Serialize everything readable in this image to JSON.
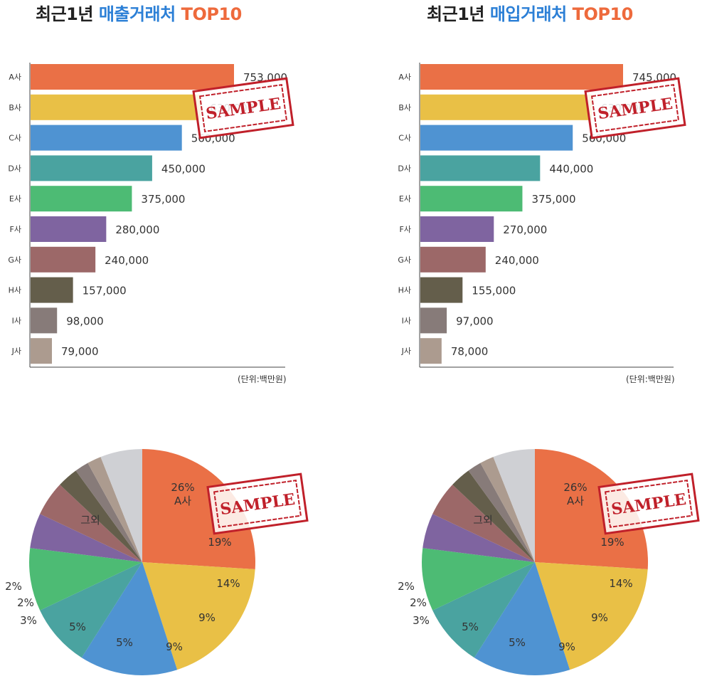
{
  "titles": [
    {
      "main": "최근1년",
      "accent": "매출거래처",
      "top": "TOP10"
    },
    {
      "main": "최근1년",
      "accent": "매입거래처",
      "top": "TOP10"
    }
  ],
  "unit_label": "(단위:백만원)",
  "stamp_text": "SAMPLE",
  "colors": [
    "#ea7046",
    "#e9c046",
    "#4f93d2",
    "#4aa3a0",
    "#4dbb74",
    "#7f64a0",
    "#9c6868",
    "#645e4b",
    "#877b79",
    "#ac9b8f"
  ],
  "other_color": "#cfd0d4",
  "chart_data": [
    {
      "type": "bar",
      "orientation": "horizontal",
      "categories": [
        "A사",
        "B사",
        "C사",
        "D사",
        "E사",
        "F사",
        "G사",
        "H사",
        "I사",
        "J사"
      ],
      "values": [
        753000,
        630000,
        560000,
        450000,
        375000,
        280000,
        240000,
        157000,
        98000,
        79000
      ],
      "value_labels": [
        "753,000",
        "630,000",
        "560,000",
        "450,000",
        "375,000",
        "280,000",
        "240,000",
        "157,000",
        "98,000",
        "79,000"
      ],
      "xlim": [
        0,
        1000000
      ]
    },
    {
      "type": "bar",
      "orientation": "horizontal",
      "categories": [
        "A사",
        "B사",
        "C사",
        "D사",
        "E사",
        "F사",
        "G사",
        "H사",
        "I사",
        "J사"
      ],
      "values": [
        745000,
        630000,
        560000,
        440000,
        375000,
        270000,
        240000,
        155000,
        97000,
        78000
      ],
      "value_labels": [
        "745,000",
        "630,000",
        "560,000",
        "440,000",
        "375,000",
        "270,000",
        "240,000",
        "155,000",
        "97,000",
        "78,000"
      ],
      "xlim": [
        0,
        1000000
      ]
    },
    {
      "type": "pie",
      "categories": [
        "A사",
        "B사",
        "C사",
        "D사",
        "E사",
        "F사",
        "G사",
        "H사",
        "I사",
        "J사",
        "그외"
      ],
      "values": [
        26,
        19,
        14,
        9,
        9,
        5,
        5,
        3,
        2,
        2,
        6
      ],
      "slice_labels": [
        "26%\nA사",
        "19%",
        "14%",
        "9%",
        "9%",
        "5%",
        "5%",
        "3%",
        "2%",
        "2%",
        "그외"
      ]
    },
    {
      "type": "pie",
      "categories": [
        "A사",
        "B사",
        "C사",
        "D사",
        "E사",
        "F사",
        "G사",
        "H사",
        "I사",
        "J사",
        "그외"
      ],
      "values": [
        26,
        19,
        14,
        9,
        9,
        5,
        5,
        3,
        2,
        2,
        6
      ],
      "slice_labels": [
        "26%\nA사",
        "19%",
        "14%",
        "9%",
        "9%",
        "5%",
        "5%",
        "3%",
        "2%",
        "2%",
        "그외"
      ]
    }
  ]
}
